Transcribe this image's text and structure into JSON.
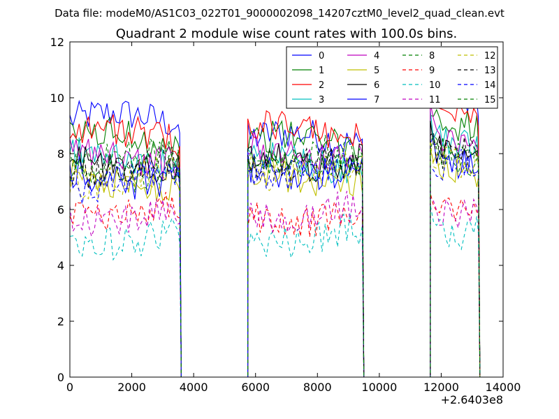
{
  "header": {
    "suptitle": "Data file: modeM0/AS1C03_022T01_9000002098_14207cztM0_level2_quad_clean.evt"
  },
  "chart_data": {
    "type": "line",
    "title": "Quadrant 2 module wise count rates with 100.0s bins.",
    "xlabel": "",
    "ylabel": "",
    "x_offset_label": "+2.6403e8",
    "xlim": [
      0,
      14000
    ],
    "ylim": [
      0,
      12
    ],
    "xticks": [
      0,
      2000,
      4000,
      6000,
      8000,
      10000,
      12000,
      14000
    ],
    "yticks": [
      0,
      2,
      4,
      6,
      8,
      10,
      12
    ],
    "grid": false,
    "legend": {
      "placement": "top-right",
      "columns": 4
    },
    "segments": [
      {
        "start": 0,
        "end": 3600
      },
      {
        "start": 5750,
        "end": 9500
      },
      {
        "start": 11650,
        "end": 13250
      }
    ],
    "series": [
      {
        "name": "0",
        "color": "#0000ff",
        "style": "solid",
        "levels": [
          9.2,
          8.5,
          9.8
        ]
      },
      {
        "name": "1",
        "color": "#008000",
        "style": "solid",
        "levels": [
          8.5,
          8.4,
          8.8
        ]
      },
      {
        "name": "2",
        "color": "#ff0000",
        "style": "solid",
        "levels": [
          8.7,
          8.8,
          9.4
        ]
      },
      {
        "name": "3",
        "color": "#00bfbf",
        "style": "solid",
        "levels": [
          7.8,
          7.7,
          8.2
        ]
      },
      {
        "name": "4",
        "color": "#bf00bf",
        "style": "solid",
        "levels": [
          7.9,
          8.0,
          8.5
        ]
      },
      {
        "name": "5",
        "color": "#bfbf00",
        "style": "solid",
        "levels": [
          7.0,
          7.2,
          7.5
        ]
      },
      {
        "name": "6",
        "color": "#000000",
        "style": "solid",
        "levels": [
          7.6,
          7.8,
          8.2
        ]
      },
      {
        "name": "7",
        "color": "#0000ff",
        "style": "solid",
        "levels": [
          7.2,
          7.4,
          7.8
        ]
      },
      {
        "name": "8",
        "color": "#008000",
        "style": "dashed",
        "levels": [
          7.4,
          7.7,
          8.0
        ]
      },
      {
        "name": "9",
        "color": "#ff0000",
        "style": "dashed",
        "levels": [
          6.0,
          5.8,
          6.2
        ]
      },
      {
        "name": "10",
        "color": "#00bfbf",
        "style": "dashed",
        "levels": [
          5.0,
          5.1,
          5.4
        ]
      },
      {
        "name": "11",
        "color": "#bf00bf",
        "style": "dashed",
        "levels": [
          5.8,
          5.9,
          6.1
        ]
      },
      {
        "name": "12",
        "color": "#bfbf00",
        "style": "dashed",
        "levels": [
          7.2,
          7.5,
          7.9
        ]
      },
      {
        "name": "13",
        "color": "#000000",
        "style": "dashed",
        "levels": [
          7.5,
          7.7,
          8.2
        ]
      },
      {
        "name": "14",
        "color": "#0000ff",
        "style": "dashed",
        "levels": [
          7.0,
          7.2,
          7.6
        ]
      },
      {
        "name": "15",
        "color": "#008000",
        "style": "dashed",
        "levels": [
          7.8,
          7.9,
          8.3
        ]
      }
    ]
  }
}
